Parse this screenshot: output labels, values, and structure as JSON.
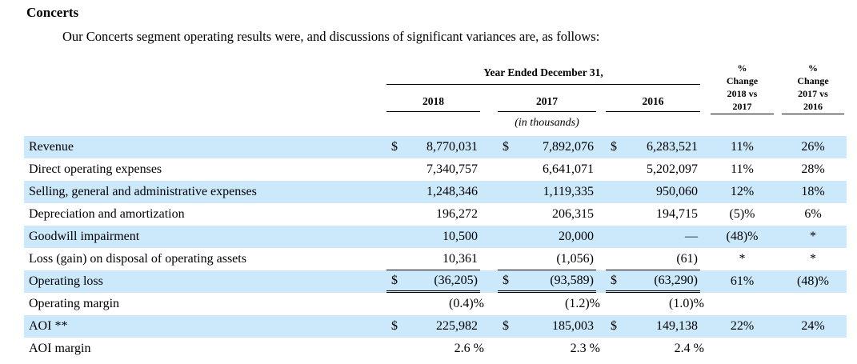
{
  "page": {
    "heading": "Concerts",
    "intro": "Our Concerts segment operating results were, and discussions of significant variances are, as follows:"
  },
  "table": {
    "header": {
      "year_ended": "Year Ended December 31,",
      "years": [
        "2018",
        "2017",
        "2016"
      ],
      "in_thousands": "(in thousands)",
      "pct_change_2018_vs_2017": [
        "%",
        "Change",
        "2018 vs",
        "2017"
      ],
      "pct_change_2017_vs_2016": [
        "%",
        "Change",
        "2017 vs",
        "2016"
      ]
    },
    "rows": [
      {
        "label": "Revenue",
        "dollar": true,
        "values": [
          "8,770,031",
          "7,892,076",
          "6,283,521"
        ],
        "pct": [
          "11%",
          "26%"
        ],
        "shade": true,
        "rule": "none",
        "overhang": false
      },
      {
        "label": "Direct operating expenses",
        "dollar": false,
        "values": [
          "7,340,757",
          "6,641,071",
          "5,202,097"
        ],
        "pct": [
          "11%",
          "28%"
        ],
        "shade": false,
        "rule": "none",
        "overhang": false
      },
      {
        "label": "Selling, general and administrative expenses",
        "dollar": false,
        "values": [
          "1,248,346",
          "1,119,335",
          "950,060"
        ],
        "pct": [
          "12%",
          "18%"
        ],
        "shade": true,
        "rule": "none",
        "overhang": false
      },
      {
        "label": "Depreciation and amortization",
        "dollar": false,
        "values": [
          "196,272",
          "206,315",
          "194,715"
        ],
        "pct": [
          "(5)%",
          "6%"
        ],
        "shade": false,
        "rule": "none",
        "overhang": false
      },
      {
        "label": "Goodwill impairment",
        "dollar": false,
        "values": [
          "10,500",
          "20,000",
          "—"
        ],
        "pct": [
          "(48)%",
          "*"
        ],
        "shade": true,
        "rule": "none",
        "overhang": false
      },
      {
        "label": "Loss (gain) on disposal of operating assets",
        "dollar": false,
        "values": [
          "10,361",
          "(1,056)",
          "(61)"
        ],
        "pct": [
          "*",
          "*"
        ],
        "shade": false,
        "rule": "single",
        "overhang": false
      },
      {
        "label": "Operating loss",
        "dollar": true,
        "values": [
          "(36,205)",
          "(93,589)",
          "(63,290)"
        ],
        "pct": [
          "61%",
          "(48)%"
        ],
        "shade": true,
        "rule": "double",
        "overhang": false
      },
      {
        "label": "Operating margin",
        "dollar": false,
        "values": [
          "(0.4)%",
          "(1.2)%",
          "(1.0)%"
        ],
        "pct": [
          "",
          ""
        ],
        "shade": false,
        "rule": "none",
        "overhang": true
      },
      {
        "label": "AOI **",
        "dollar": true,
        "values": [
          "225,982",
          "185,003",
          "149,138"
        ],
        "pct": [
          "22%",
          "24%"
        ],
        "shade": true,
        "rule": "none",
        "overhang": false
      },
      {
        "label": "AOI margin",
        "dollar": false,
        "values": [
          "2.6 %",
          "2.3 %",
          "2.4 %"
        ],
        "pct": [
          "",
          ""
        ],
        "shade": false,
        "rule": "none",
        "overhang": true
      }
    ]
  },
  "colors": {
    "row_highlight": "#cce9fb"
  }
}
